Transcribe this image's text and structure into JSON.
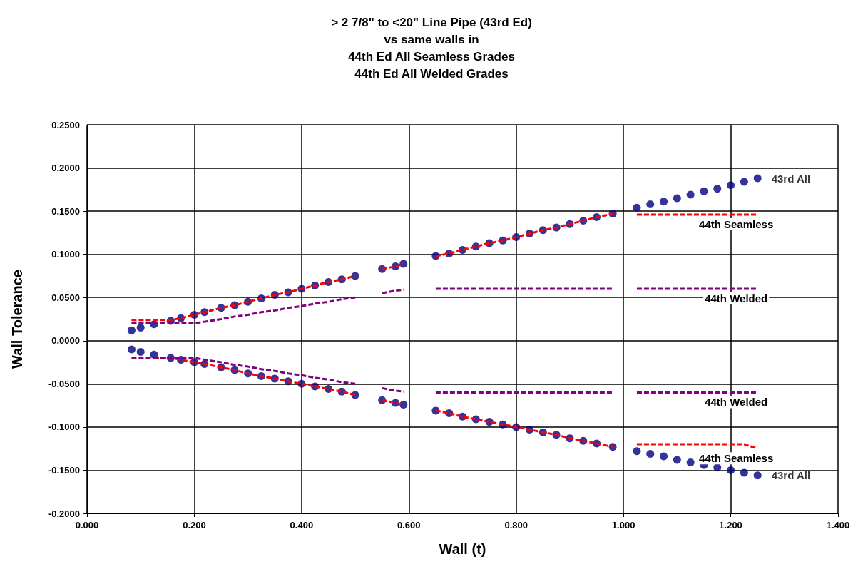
{
  "chart_data": {
    "type": "scatter",
    "title": "> 2 7/8\" to <20\" Line Pipe (43rd Ed)\nvs same walls in\n44th Ed All Seamless Grades\n44th Ed All Welded Grades",
    "xlabel": "Wall (t)",
    "ylabel": "Wall Tolerance",
    "xlim": [
      0,
      1.4
    ],
    "xticks": [
      {
        "value": 0,
        "label": "0.000"
      },
      {
        "value": 0.2,
        "label": "0.200"
      },
      {
        "value": 0.4,
        "label": "0.400"
      },
      {
        "value": 0.6,
        "label": "0.600"
      },
      {
        "value": 0.8,
        "label": "0.800"
      },
      {
        "value": 1.0,
        "label": "1.000"
      },
      {
        "value": 1.2,
        "label": "1.200"
      },
      {
        "value": 1.4,
        "label": "1.400"
      }
    ],
    "ylim": [
      -0.2,
      0.25
    ],
    "yticks": [
      {
        "value": -0.2,
        "label": "-0.2000"
      },
      {
        "value": -0.15,
        "label": "-0.1500"
      },
      {
        "value": -0.1,
        "label": "-0.1000"
      },
      {
        "value": -0.05,
        "label": "-0.0500"
      },
      {
        "value": 0,
        "label": "0.0000"
      },
      {
        "value": 0.05,
        "label": "0.0500"
      },
      {
        "value": 0.1,
        "label": "0.1000"
      },
      {
        "value": 0.15,
        "label": "0.1500"
      },
      {
        "value": 0.2,
        "label": "0.2000"
      },
      {
        "value": 0.25,
        "label": "0.2500"
      }
    ],
    "grid": true,
    "legend": false,
    "series": [
      {
        "name": "44th Seamless",
        "type": "line",
        "marker": "none",
        "line_style": "dashed",
        "color": "#ff0000",
        "x": [
          0.083,
          0.1,
          0.125,
          0.156,
          0.175,
          0.2,
          0.219,
          0.25,
          0.275,
          0.3,
          0.325,
          0.35,
          0.375,
          0.4,
          0.425,
          0.45,
          0.475,
          0.5,
          0.525,
          0.55,
          0.575,
          0.59,
          0.62,
          0.65,
          0.675,
          0.7,
          0.725,
          0.75,
          0.775,
          0.8,
          0.825,
          0.85,
          0.875,
          0.9,
          0.925,
          0.95,
          0.98,
          1.0,
          1.025,
          1.05,
          1.075,
          1.1,
          1.125,
          1.15,
          1.175,
          1.2,
          1.225,
          1.25
        ],
        "values": [
          0.024,
          0.024,
          0.024,
          0.024,
          0.026,
          0.03,
          0.033,
          0.038,
          0.041,
          0.045,
          0.049,
          0.053,
          0.056,
          0.06,
          0.064,
          0.068,
          0.071,
          0.075,
          null,
          0.083,
          0.086,
          0.089,
          null,
          0.098,
          0.101,
          0.105,
          0.109,
          0.113,
          0.116,
          0.12,
          0.124,
          0.128,
          0.131,
          0.135,
          0.139,
          0.143,
          0.147,
          null,
          0.146,
          0.146,
          0.146,
          0.146,
          0.146,
          0.146,
          0.146,
          0.146,
          0.146,
          0.146
        ]
      },
      {
        "name": "44th Seamless",
        "type": "line",
        "marker": "none",
        "line_style": "dashed",
        "color": "#ff0000",
        "x": [
          0.125,
          0.156,
          0.175,
          0.2,
          0.219,
          0.25,
          0.275,
          0.3,
          0.325,
          0.35,
          0.375,
          0.4,
          0.425,
          0.45,
          0.475,
          0.5,
          0.525,
          0.55,
          0.575,
          0.59,
          0.62,
          0.65,
          0.675,
          0.7,
          0.725,
          0.75,
          0.775,
          0.8,
          0.825,
          0.85,
          0.875,
          0.9,
          0.925,
          0.95,
          0.98,
          1.0,
          1.025,
          1.05,
          1.075,
          1.1,
          1.125,
          1.15,
          1.175,
          1.2,
          1.225,
          1.25
        ],
        "values": [
          -0.02,
          -0.02,
          -0.022,
          -0.025,
          -0.027,
          -0.031,
          -0.034,
          -0.038,
          -0.041,
          -0.044,
          -0.047,
          -0.05,
          -0.053,
          -0.056,
          -0.059,
          -0.063,
          null,
          -0.069,
          -0.072,
          -0.074,
          null,
          -0.081,
          -0.084,
          -0.088,
          -0.091,
          -0.094,
          -0.097,
          -0.1,
          -0.103,
          -0.106,
          -0.109,
          -0.113,
          -0.116,
          -0.119,
          -0.123,
          null,
          -0.12,
          -0.12,
          -0.12,
          -0.12,
          -0.12,
          -0.12,
          -0.12,
          -0.12,
          -0.12,
          -0.125
        ]
      },
      {
        "name": "44th Welded",
        "type": "line",
        "marker": "none",
        "line_style": "dashed",
        "color": "#800080",
        "x": [
          0.083,
          0.1,
          0.125,
          0.156,
          0.175,
          0.2,
          0.219,
          0.25,
          0.275,
          0.3,
          0.325,
          0.35,
          0.375,
          0.4,
          0.425,
          0.45,
          0.475,
          0.5,
          0.525,
          0.55,
          0.575,
          0.59,
          0.62,
          0.65,
          0.675,
          0.7,
          0.725,
          0.75,
          0.775,
          0.8,
          0.825,
          0.85,
          0.875,
          0.9,
          0.925,
          0.95,
          0.98,
          1.0,
          1.025,
          1.05,
          1.075,
          1.1,
          1.125,
          1.15,
          1.175,
          1.2,
          1.225,
          1.25
        ],
        "values": [
          0.02,
          0.02,
          0.02,
          0.02,
          0.02,
          0.02,
          0.022,
          0.025,
          0.028,
          0.03,
          0.033,
          0.035,
          0.038,
          0.04,
          0.043,
          0.045,
          0.048,
          0.05,
          null,
          0.055,
          0.058,
          0.059,
          null,
          0.06,
          0.06,
          0.06,
          0.06,
          0.06,
          0.06,
          0.06,
          0.06,
          0.06,
          0.06,
          0.06,
          0.06,
          0.06,
          0.06,
          null,
          0.06,
          0.06,
          0.06,
          0.06,
          0.06,
          0.06,
          0.06,
          0.06,
          0.06,
          0.06
        ]
      },
      {
        "name": "44th Welded",
        "type": "line",
        "marker": "none",
        "line_style": "dashed",
        "color": "#800080",
        "x": [
          0.083,
          0.1,
          0.125,
          0.156,
          0.175,
          0.2,
          0.219,
          0.25,
          0.275,
          0.3,
          0.325,
          0.35,
          0.375,
          0.4,
          0.425,
          0.45,
          0.475,
          0.5,
          0.525,
          0.55,
          0.575,
          0.59,
          0.62,
          0.65,
          0.675,
          0.7,
          0.725,
          0.75,
          0.775,
          0.8,
          0.825,
          0.85,
          0.875,
          0.9,
          0.925,
          0.95,
          0.98,
          1.0,
          1.025,
          1.05,
          1.075,
          1.1,
          1.125,
          1.15,
          1.175,
          1.2,
          1.225,
          1.25
        ],
        "values": [
          -0.02,
          -0.02,
          -0.02,
          -0.02,
          -0.02,
          -0.02,
          -0.022,
          -0.025,
          -0.028,
          -0.03,
          -0.033,
          -0.035,
          -0.038,
          -0.04,
          -0.043,
          -0.045,
          -0.048,
          -0.05,
          null,
          -0.055,
          -0.058,
          -0.059,
          null,
          -0.06,
          -0.06,
          -0.06,
          -0.06,
          -0.06,
          -0.06,
          -0.06,
          -0.06,
          -0.06,
          -0.06,
          -0.06,
          -0.06,
          -0.06,
          -0.06,
          null,
          -0.06,
          -0.06,
          -0.06,
          -0.06,
          -0.06,
          -0.06,
          -0.06,
          -0.06,
          -0.06,
          -0.06
        ]
      },
      {
        "name": "43rd All",
        "marker": "circle",
        "color": "#000080",
        "x": [
          0.083,
          0.1,
          0.125,
          0.156,
          0.175,
          0.2,
          0.219,
          0.25,
          0.275,
          0.3,
          0.325,
          0.35,
          0.375,
          0.4,
          0.425,
          0.45,
          0.475,
          0.5,
          0.55,
          0.575,
          0.59,
          0.65,
          0.675,
          0.7,
          0.725,
          0.75,
          0.775,
          0.8,
          0.825,
          0.85,
          0.875,
          0.9,
          0.925,
          0.95,
          0.98,
          1.025,
          1.05,
          1.075,
          1.1,
          1.125,
          1.15,
          1.175,
          1.2,
          1.225,
          1.25
        ],
        "values": [
          0.012,
          0.015,
          0.019,
          0.023,
          0.026,
          0.03,
          0.033,
          0.038,
          0.041,
          0.045,
          0.049,
          0.053,
          0.056,
          0.06,
          0.064,
          0.068,
          0.071,
          0.075,
          0.083,
          0.086,
          0.089,
          0.098,
          0.101,
          0.105,
          0.109,
          0.113,
          0.116,
          0.12,
          0.124,
          0.128,
          0.131,
          0.135,
          0.139,
          0.143,
          0.147,
          0.154,
          0.158,
          0.161,
          0.165,
          0.169,
          0.173,
          0.176,
          0.18,
          0.184,
          0.188
        ]
      },
      {
        "name": "43rd All",
        "marker": "circle",
        "color": "#000080",
        "x": [
          0.083,
          0.1,
          0.125,
          0.156,
          0.175,
          0.2,
          0.219,
          0.25,
          0.275,
          0.3,
          0.325,
          0.35,
          0.375,
          0.4,
          0.425,
          0.45,
          0.475,
          0.5,
          0.55,
          0.575,
          0.59,
          0.65,
          0.675,
          0.7,
          0.725,
          0.75,
          0.775,
          0.8,
          0.825,
          0.85,
          0.875,
          0.9,
          0.925,
          0.95,
          0.98,
          1.025,
          1.05,
          1.075,
          1.1,
          1.125,
          1.15,
          1.175,
          1.2,
          1.225,
          1.25
        ],
        "values": [
          -0.01,
          -0.013,
          -0.016,
          -0.02,
          -0.022,
          -0.025,
          -0.027,
          -0.031,
          -0.034,
          -0.038,
          -0.041,
          -0.044,
          -0.047,
          -0.05,
          -0.053,
          -0.056,
          -0.059,
          -0.063,
          -0.069,
          -0.072,
          -0.074,
          -0.081,
          -0.084,
          -0.088,
          -0.091,
          -0.094,
          -0.097,
          -0.1,
          -0.103,
          -0.106,
          -0.109,
          -0.113,
          -0.116,
          -0.119,
          -0.123,
          -0.128,
          -0.131,
          -0.134,
          -0.138,
          -0.141,
          -0.144,
          -0.147,
          -0.15,
          -0.153,
          -0.156
        ]
      }
    ]
  }
}
